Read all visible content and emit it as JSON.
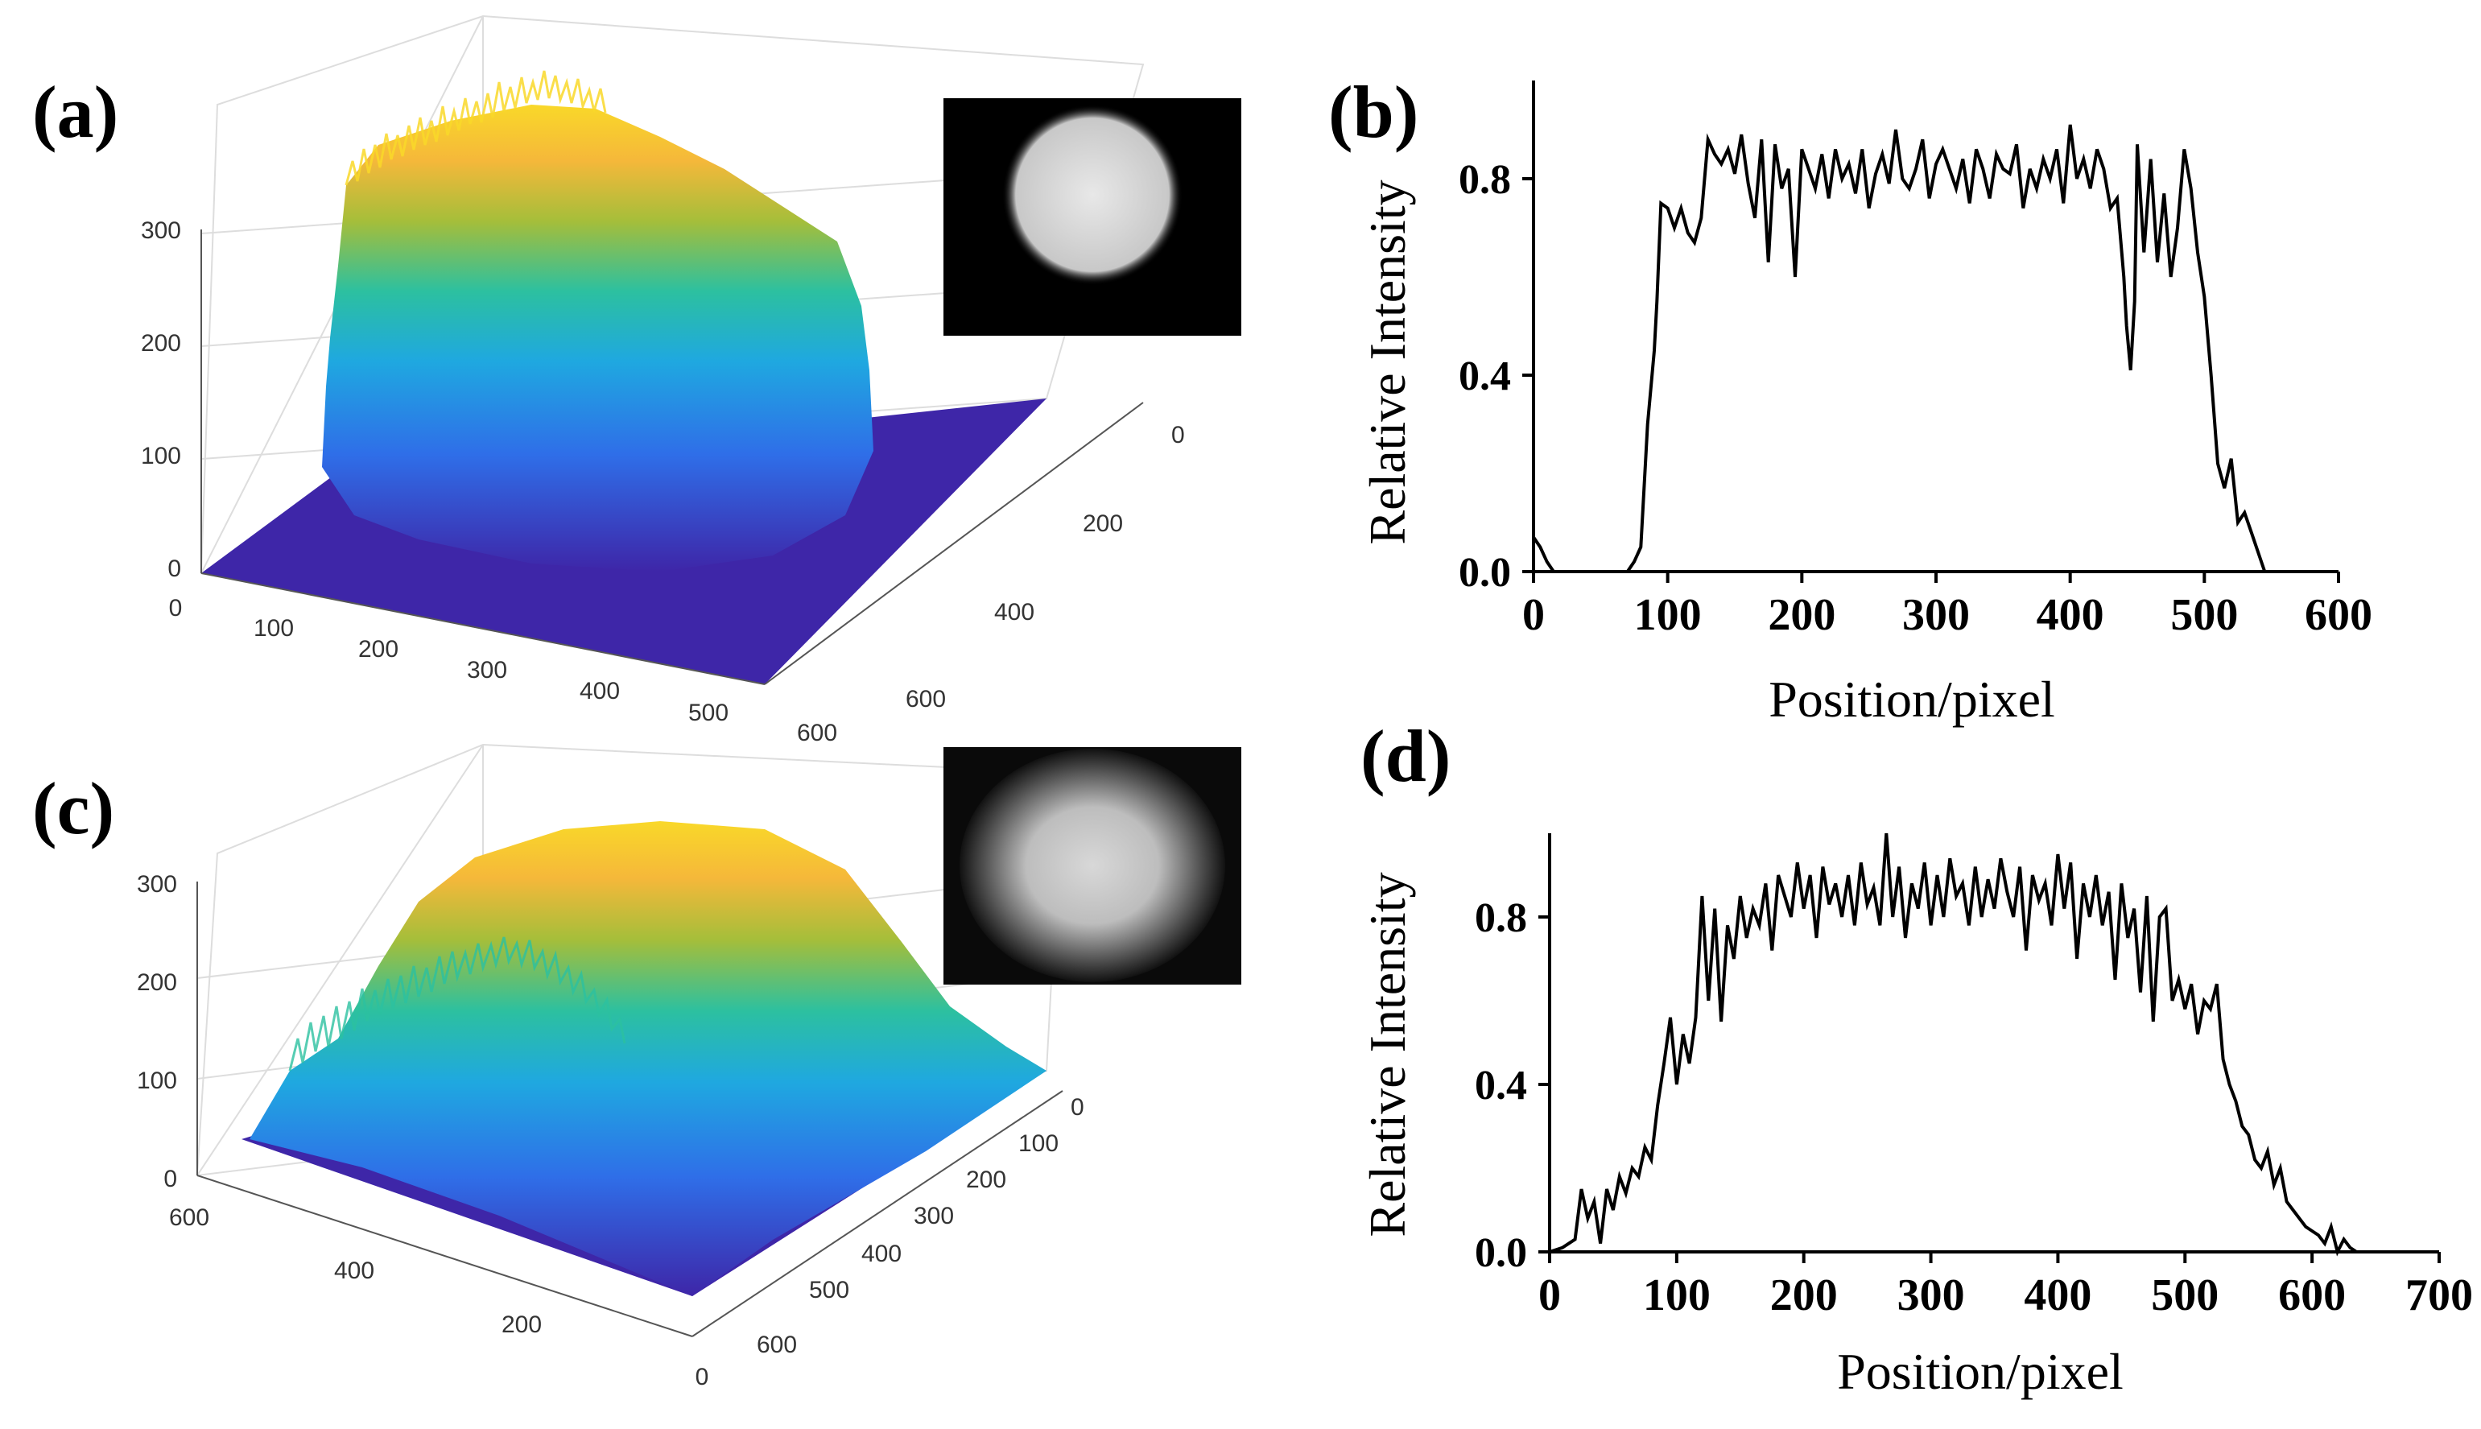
{
  "panels": {
    "a": {
      "label": "(a)"
    },
    "b": {
      "label": "(b)"
    },
    "c": {
      "label": "(c)"
    },
    "d": {
      "label": "(d)"
    }
  },
  "colors": {
    "surface_low": "#3e26a8",
    "surface_mid": "#1fa8e0",
    "surface_green": "#2cc0a0",
    "surface_high": "#f9c929",
    "inset_bg": "#000000",
    "line": "#000000"
  },
  "chart_data": [
    {
      "id": "a",
      "type": "surface3d",
      "title": "",
      "z_ticks": [
        "0",
        "100",
        "200",
        "300"
      ],
      "x_ticks": [
        "0",
        "100",
        "200",
        "300",
        "400",
        "500",
        "600"
      ],
      "y_ticks": [
        "0",
        "200",
        "400",
        "600"
      ],
      "zlim": [
        0,
        300
      ],
      "description_shape": "flat-top disc with steep edges",
      "inset": "speckle image, sharp-edged bright disc on black"
    },
    {
      "id": "b",
      "type": "line",
      "title": "",
      "xlabel": "Position/pixel",
      "ylabel": "Relative  Intensity",
      "xlim": [
        0,
        600
      ],
      "ylim": [
        0,
        1.0
      ],
      "x_ticks": [
        "0",
        "100",
        "200",
        "300",
        "400",
        "500",
        "600"
      ],
      "y_ticks": [
        "0.0",
        "0.4",
        "0.8"
      ],
      "x": [
        0,
        5,
        10,
        15,
        20,
        25,
        70,
        75,
        80,
        85,
        90,
        92,
        95,
        100,
        105,
        110,
        115,
        120,
        125,
        130,
        135,
        140,
        145,
        150,
        155,
        160,
        165,
        170,
        175,
        180,
        185,
        190,
        195,
        200,
        205,
        210,
        215,
        220,
        225,
        230,
        235,
        240,
        245,
        250,
        255,
        260,
        265,
        270,
        275,
        280,
        285,
        290,
        295,
        300,
        305,
        310,
        315,
        320,
        325,
        330,
        335,
        340,
        345,
        350,
        355,
        360,
        365,
        370,
        375,
        380,
        385,
        390,
        395,
        400,
        405,
        410,
        415,
        420,
        425,
        430,
        435,
        440,
        442,
        445,
        448,
        450,
        455,
        460,
        465,
        470,
        475,
        480,
        485,
        490,
        495,
        500,
        505,
        510,
        515,
        520,
        525,
        530,
        535,
        540,
        545
      ],
      "y": [
        0.07,
        0.05,
        0.02,
        0.0,
        0.0,
        0.0,
        0.0,
        0.02,
        0.05,
        0.3,
        0.45,
        0.55,
        0.75,
        0.74,
        0.7,
        0.74,
        0.69,
        0.67,
        0.72,
        0.88,
        0.85,
        0.83,
        0.86,
        0.81,
        0.89,
        0.79,
        0.72,
        0.88,
        0.63,
        0.87,
        0.78,
        0.82,
        0.6,
        0.86,
        0.82,
        0.78,
        0.85,
        0.76,
        0.86,
        0.8,
        0.83,
        0.77,
        0.86,
        0.74,
        0.81,
        0.85,
        0.79,
        0.9,
        0.8,
        0.78,
        0.82,
        0.88,
        0.76,
        0.83,
        0.86,
        0.82,
        0.78,
        0.84,
        0.75,
        0.86,
        0.82,
        0.76,
        0.85,
        0.82,
        0.81,
        0.87,
        0.74,
        0.82,
        0.78,
        0.84,
        0.8,
        0.86,
        0.75,
        0.91,
        0.8,
        0.84,
        0.78,
        0.86,
        0.82,
        0.74,
        0.76,
        0.6,
        0.5,
        0.41,
        0.55,
        0.87,
        0.65,
        0.84,
        0.63,
        0.77,
        0.6,
        0.7,
        0.86,
        0.78,
        0.65,
        0.56,
        0.4,
        0.22,
        0.17,
        0.23,
        0.1,
        0.12,
        0.08,
        0.04,
        0.0
      ]
    },
    {
      "id": "c",
      "type": "surface3d",
      "title": "",
      "z_ticks": [
        "0",
        "100",
        "200",
        "300"
      ],
      "x_ticks": [
        "600",
        "400",
        "200",
        "0"
      ],
      "y_ticks": [
        "0",
        "100",
        "200",
        "300",
        "400",
        "500",
        "600"
      ],
      "zlim": [
        0,
        300
      ],
      "description_shape": "gaussian-like dome with noisy skirt",
      "inset": "speckle image, soft-edged bright disc on dark"
    },
    {
      "id": "d",
      "type": "line",
      "title": "",
      "xlabel": "Position/pixel",
      "ylabel": "Relative  Intensity",
      "xlim": [
        0,
        700
      ],
      "ylim": [
        0,
        1.0
      ],
      "x_ticks": [
        "0",
        "100",
        "200",
        "300",
        "400",
        "500",
        "600",
        "700"
      ],
      "y_ticks": [
        "0.0",
        "0.4",
        "0.8"
      ],
      "x": [
        0,
        10,
        20,
        25,
        30,
        35,
        40,
        45,
        50,
        55,
        60,
        65,
        70,
        75,
        80,
        85,
        90,
        95,
        100,
        105,
        110,
        115,
        120,
        125,
        130,
        135,
        140,
        145,
        150,
        155,
        160,
        165,
        170,
        175,
        180,
        185,
        190,
        195,
        200,
        205,
        210,
        215,
        220,
        225,
        230,
        235,
        240,
        245,
        250,
        255,
        260,
        265,
        270,
        275,
        280,
        285,
        290,
        295,
        300,
        305,
        310,
        315,
        320,
        325,
        330,
        335,
        340,
        345,
        350,
        355,
        360,
        365,
        370,
        375,
        380,
        385,
        390,
        395,
        400,
        405,
        410,
        415,
        420,
        425,
        430,
        435,
        440,
        445,
        450,
        455,
        460,
        465,
        470,
        475,
        480,
        485,
        490,
        495,
        500,
        505,
        510,
        515,
        520,
        525,
        530,
        535,
        540,
        545,
        550,
        555,
        560,
        565,
        570,
        575,
        580,
        585,
        590,
        595,
        600,
        605,
        610,
        615,
        620,
        625,
        630,
        635,
        640,
        645
      ],
      "y": [
        0.0,
        0.01,
        0.03,
        0.15,
        0.08,
        0.12,
        0.02,
        0.15,
        0.1,
        0.18,
        0.14,
        0.2,
        0.18,
        0.25,
        0.22,
        0.35,
        0.45,
        0.56,
        0.4,
        0.52,
        0.45,
        0.56,
        0.85,
        0.6,
        0.82,
        0.55,
        0.78,
        0.7,
        0.85,
        0.75,
        0.82,
        0.78,
        0.88,
        0.72,
        0.9,
        0.85,
        0.8,
        0.93,
        0.82,
        0.9,
        0.75,
        0.92,
        0.83,
        0.88,
        0.8,
        0.9,
        0.78,
        0.93,
        0.83,
        0.87,
        0.78,
        1.0,
        0.8,
        0.92,
        0.75,
        0.88,
        0.82,
        0.93,
        0.78,
        0.9,
        0.8,
        0.94,
        0.85,
        0.88,
        0.78,
        0.92,
        0.8,
        0.89,
        0.82,
        0.94,
        0.86,
        0.8,
        0.92,
        0.72,
        0.9,
        0.84,
        0.88,
        0.78,
        0.95,
        0.82,
        0.93,
        0.7,
        0.88,
        0.8,
        0.9,
        0.78,
        0.86,
        0.65,
        0.88,
        0.75,
        0.82,
        0.62,
        0.85,
        0.55,
        0.8,
        0.82,
        0.6,
        0.65,
        0.58,
        0.64,
        0.52,
        0.6,
        0.58,
        0.64,
        0.46,
        0.4,
        0.36,
        0.3,
        0.28,
        0.22,
        0.2,
        0.24,
        0.16,
        0.2,
        0.12,
        0.1,
        0.08,
        0.06,
        0.05,
        0.04,
        0.02,
        0.06,
        0.0,
        0.03,
        0.01,
        0.0,
        0.0,
        0.0
      ]
    }
  ]
}
